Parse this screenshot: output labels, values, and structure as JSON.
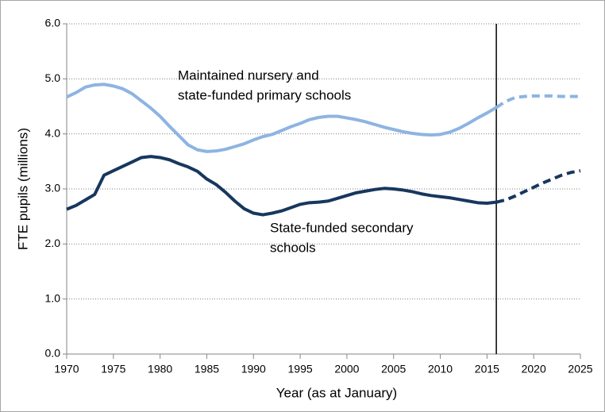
{
  "chart_data": {
    "type": "line",
    "xlabel": "Year (as at January)",
    "ylabel": "FTE pupils (millions)",
    "x": [
      1970,
      1971,
      1972,
      1973,
      1974,
      1975,
      1976,
      1977,
      1978,
      1979,
      1980,
      1981,
      1982,
      1983,
      1984,
      1985,
      1986,
      1987,
      1988,
      1989,
      1990,
      1991,
      1992,
      1993,
      1994,
      1995,
      1996,
      1997,
      1998,
      1999,
      2000,
      2001,
      2002,
      2003,
      2004,
      2005,
      2006,
      2007,
      2008,
      2009,
      2010,
      2011,
      2012,
      2013,
      2014,
      2015,
      2016,
      2017,
      2018,
      2019,
      2020,
      2021,
      2022,
      2023,
      2024,
      2025
    ],
    "series": [
      {
        "label_lines": [
          "Maintained nursery and",
          "state-funded primary schools"
        ],
        "color": "#8db4e2",
        "values": [
          4.67,
          4.75,
          4.85,
          4.89,
          4.9,
          4.87,
          4.82,
          4.73,
          4.6,
          4.47,
          4.32,
          4.14,
          3.97,
          3.8,
          3.71,
          3.68,
          3.69,
          3.72,
          3.77,
          3.82,
          3.89,
          3.95,
          3.99,
          4.06,
          4.13,
          4.19,
          4.26,
          4.3,
          4.32,
          4.32,
          4.29,
          4.26,
          4.22,
          4.17,
          4.12,
          4.08,
          4.04,
          4.01,
          3.99,
          3.98,
          3.99,
          4.03,
          4.1,
          4.19,
          4.29,
          4.38,
          4.48,
          4.59,
          4.66,
          4.68,
          4.69,
          4.69,
          4.69,
          4.68,
          4.68,
          4.68
        ]
      },
      {
        "label_lines": [
          "State-funded secondary",
          "schools"
        ],
        "color": "#17375e",
        "values": [
          2.63,
          2.7,
          2.8,
          2.9,
          3.25,
          3.33,
          3.41,
          3.49,
          3.57,
          3.59,
          3.57,
          3.53,
          3.46,
          3.4,
          3.32,
          3.18,
          3.08,
          2.94,
          2.78,
          2.64,
          2.56,
          2.53,
          2.56,
          2.6,
          2.66,
          2.72,
          2.75,
          2.76,
          2.78,
          2.83,
          2.88,
          2.93,
          2.96,
          2.99,
          3.01,
          3.0,
          2.98,
          2.95,
          2.91,
          2.88,
          2.86,
          2.84,
          2.81,
          2.78,
          2.75,
          2.74,
          2.76,
          2.8,
          2.87,
          2.95,
          3.03,
          3.11,
          3.18,
          3.25,
          3.3,
          3.33
        ]
      }
    ],
    "projection_from": 2016,
    "xlim": [
      1970,
      2025
    ],
    "xticks": [
      1970,
      1975,
      1980,
      1985,
      1990,
      1995,
      2000,
      2005,
      2010,
      2015,
      2020,
      2025
    ],
    "ylim": [
      0,
      6
    ],
    "yticks": [
      {
        "value": 0,
        "label": "0.0"
      },
      {
        "value": 1,
        "label": "1.0"
      },
      {
        "value": 2,
        "label": "2.0"
      },
      {
        "value": 3,
        "label": "3.0"
      },
      {
        "value": 4,
        "label": "4.0"
      },
      {
        "value": 5,
        "label": "5.0"
      },
      {
        "value": 6,
        "label": "6.0"
      }
    ],
    "grid": true
  }
}
